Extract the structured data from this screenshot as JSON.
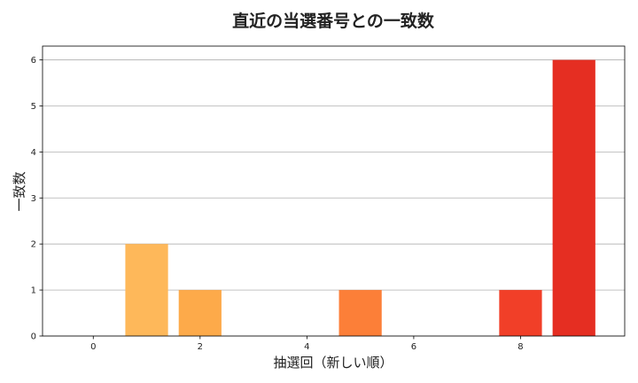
{
  "chart_data": {
    "type": "bar",
    "title": "直近の当選番号との一致数",
    "xlabel": "抽選回（新しい順）",
    "ylabel": "一致数",
    "x": [
      0,
      1,
      2,
      3,
      4,
      5,
      6,
      7,
      8,
      9
    ],
    "values": [
      0,
      2,
      1,
      0,
      0,
      1,
      0,
      0,
      1,
      6
    ],
    "colors": [
      "#ffffcc",
      "#feb85a",
      "#fdaa4a",
      "#fd9b42",
      "#fd8c3c",
      "#fc7f38",
      "#fb6a31",
      "#f8552b",
      "#f13f28",
      "#e52e22"
    ],
    "xlim": [
      -0.95,
      9.95
    ],
    "ylim": [
      0,
      6.3
    ],
    "xticks": [
      0,
      2,
      4,
      6,
      8
    ],
    "yticks": [
      0,
      1,
      2,
      3,
      4,
      5,
      6
    ],
    "grid": "horizontal",
    "legend": "none"
  }
}
